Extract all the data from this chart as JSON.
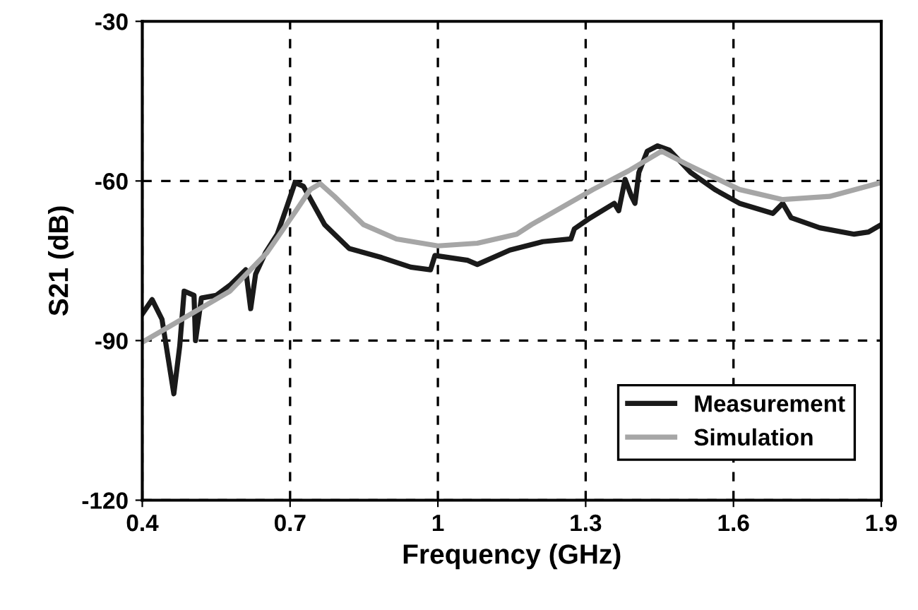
{
  "chart_data": {
    "type": "line",
    "xlabel": "Frequency (GHz)",
    "ylabel": "S21 (dB)",
    "xlim": [
      0.4,
      1.9
    ],
    "xticks": [
      0.4,
      0.7,
      1,
      1.3,
      1.6,
      1.9
    ],
    "ylim": [
      -120,
      -30
    ],
    "yticks": [
      -120,
      -90,
      -60,
      -30
    ],
    "grid": true,
    "legend": "bottom right",
    "line_style": "solid",
    "marker": "none",
    "series": [
      {
        "name": "Measurement",
        "color": "#1a1a1a",
        "x": [
          0.4,
          0.42,
          0.44,
          0.464,
          0.476,
          0.485,
          0.505,
          0.508,
          0.52,
          0.55,
          0.578,
          0.61,
          0.62,
          0.63,
          0.65,
          0.674,
          0.694,
          0.71,
          0.727,
          0.77,
          0.82,
          0.886,
          0.945,
          0.985,
          0.994,
          1.06,
          1.08,
          1.146,
          1.213,
          1.27,
          1.277,
          1.31,
          1.358,
          1.367,
          1.38,
          1.393,
          1.4,
          1.408,
          1.425,
          1.446,
          1.47,
          1.513,
          1.562,
          1.612,
          1.68,
          1.7,
          1.717,
          1.775,
          1.845,
          1.874,
          1.9
        ],
        "values": [
          -85,
          -82.3,
          -86,
          -100,
          -91,
          -80.7,
          -81.5,
          -90,
          -82,
          -81.5,
          -79.6,
          -76.7,
          -84,
          -77.5,
          -73.5,
          -70,
          -64.7,
          -60.3,
          -61,
          -68.2,
          -72.7,
          -74.4,
          -76.2,
          -76.7,
          -74,
          -74.9,
          -75.7,
          -73,
          -71.4,
          -70.9,
          -69,
          -66.9,
          -64.2,
          -65.6,
          -59.7,
          -62.9,
          -64.2,
          -58.4,
          -54.4,
          -53.4,
          -54.2,
          -58.4,
          -61.6,
          -64.2,
          -66.1,
          -64.2,
          -66.9,
          -68.8,
          -70,
          -69.6,
          -68.2
        ]
      },
      {
        "name": "Simulation",
        "color": "#a6a6a6",
        "x": [
          0.4,
          0.48,
          0.578,
          0.653,
          0.712,
          0.741,
          0.761,
          0.79,
          0.849,
          0.916,
          1.0,
          1.08,
          1.16,
          1.19,
          1.315,
          1.387,
          1.454,
          1.504,
          1.612,
          1.7,
          1.795,
          1.9
        ],
        "values": [
          -90.3,
          -86,
          -80.7,
          -73.5,
          -65.6,
          -61.6,
          -60.5,
          -62.9,
          -68.2,
          -70.9,
          -72.2,
          -71.7,
          -70,
          -68.2,
          -61.6,
          -58.1,
          -54.4,
          -56.8,
          -61.6,
          -63.5,
          -62.9,
          -60.3
        ]
      }
    ]
  }
}
